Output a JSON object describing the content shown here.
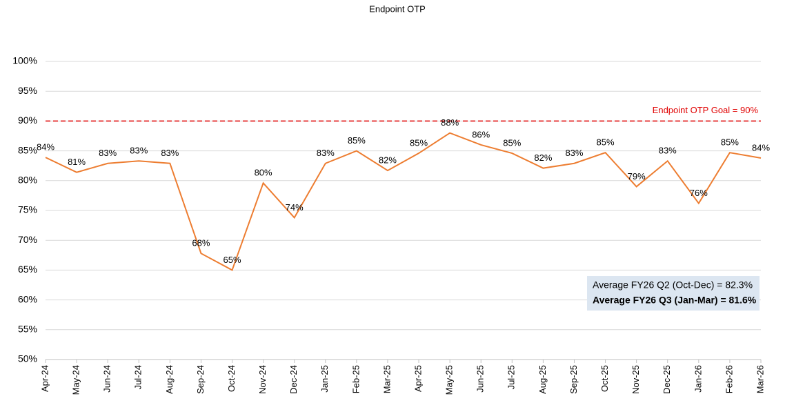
{
  "chart_data": {
    "type": "line",
    "title": "Endpoint OTP",
    "categories": [
      "Apr-24",
      "May-24",
      "Jun-24",
      "Jul-24",
      "Aug-24",
      "Sep-24",
      "Oct-24",
      "Nov-24",
      "Dec-24",
      "Jan-25",
      "Feb-25",
      "Mar-25",
      "Apr-25",
      "May-25",
      "Jun-25",
      "Jul-25",
      "Aug-25",
      "Sep-25",
      "Oct-25",
      "Nov-25",
      "Dec-25",
      "Jan-26",
      "Feb-26",
      "Mar-26"
    ],
    "series": [
      {
        "name": "Endpoint OTP",
        "color": "#ed7d31",
        "values": [
          83.9,
          81.4,
          82.9,
          83.3,
          82.9,
          67.8,
          65.0,
          79.6,
          73.8,
          82.9,
          85.0,
          81.7,
          84.6,
          88.0,
          86.0,
          84.6,
          82.1,
          82.9,
          84.7,
          79.0,
          83.3,
          76.2,
          84.7,
          83.8
        ],
        "value_labels": [
          "84%",
          "81%",
          "83%",
          "83%",
          "83%",
          "68%",
          "65%",
          "80%",
          "74%",
          "83%",
          "85%",
          "82%",
          "85%",
          "88%",
          "86%",
          "85%",
          "82%",
          "83%",
          "85%",
          "79%",
          "83%",
          "76%",
          "85%",
          "84%"
        ]
      }
    ],
    "ylim": [
      50,
      100
    ],
    "yticks": [
      {
        "value": 50,
        "label": "50%"
      },
      {
        "value": 55,
        "label": "55%"
      },
      {
        "value": 60,
        "label": "60%"
      },
      {
        "value": 65,
        "label": "65%"
      },
      {
        "value": 70,
        "label": "70%"
      },
      {
        "value": 75,
        "label": "75%"
      },
      {
        "value": 80,
        "label": "80%"
      },
      {
        "value": 85,
        "label": "85%"
      },
      {
        "value": 90,
        "label": "90%"
      },
      {
        "value": 95,
        "label": "95%"
      },
      {
        "value": 100,
        "label": "100%"
      }
    ],
    "grid": true,
    "goal": {
      "value": 90,
      "label": "Endpoint OTP Goal = 90%",
      "color": "#e00000"
    },
    "notes": [
      "Average FY26 Q2 (Oct-Dec) = 82.3%",
      "Average FY26 Q3 (Jan-Mar) = 81.6%"
    ]
  }
}
